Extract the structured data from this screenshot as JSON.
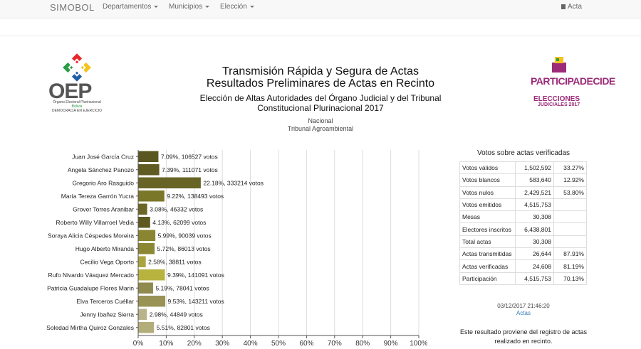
{
  "nav": {
    "brand": "SIMOBOL",
    "items": [
      "Departamentos",
      "Municipios",
      "Elección"
    ],
    "right": "Acta"
  },
  "header": {
    "title_line1": "Transmisión Rápida y Segura de Actas",
    "title_line2": "Resultados Preliminares de Actas en Recinto",
    "subtitle_line1": "Elección de Altas Autoridades del Órgano Judicial y del Tribunal",
    "subtitle_line2": "Constitucional Plurinacional 2017",
    "scope": "Nacional",
    "court": "Tribunal Agroambiental"
  },
  "logos": {
    "oep_word": "OEP",
    "oep_sub1": "Órgano Electoral Plurinacional",
    "oep_sub2": "Bolivia",
    "oep_sub3": "DEMOCRACIA EN EJERCICIO",
    "participa_word": "PARTICIPADECIDE",
    "participa_line1": "ELECCIONES",
    "participa_line2": "JUDICIALES 2017"
  },
  "chart_data": {
    "type": "bar",
    "orientation": "horizontal",
    "categories": [
      "Juan José García Cruz",
      "Angela Sánchez Panozo",
      "Gregorio Aro Rasguido",
      "María Tereza Garrón Yucra",
      "Grover Torres Aranibar",
      "Roberto Willy Villarroel Vedia",
      "Soraya Alicia Céspedes Moreira",
      "Hugo Alberto Miranda",
      "Cecilio Vega Oporto",
      "Rufo Nivardo Vásquez Mercado",
      "Patricia Guadalupe Flores Marin",
      "Elva Terceros Cuéllar",
      "Jenny Ibañez Sierra",
      "Soledad Mirtha Quiroz Gonzales"
    ],
    "values": [
      7.09,
      7.39,
      22.18,
      9.22,
      3.08,
      4.13,
      5.99,
      5.72,
      2.58,
      9.39,
      5.19,
      9.53,
      2.98,
      5.51
    ],
    "labels": [
      "7.09%, 106527 votos",
      "7.39%, 111071 votos",
      "22.18%, 333214 votos",
      "9.22%, 138493 votos",
      "3.08%, 46332 votos",
      "4.13%, 62099 votos",
      "5.99%, 90039 votos",
      "5.72%, 86013 votos",
      "2.58%, 38811 votos",
      "9.39%, 141091 votos",
      "5.19%, 78041 votos",
      "9.53%, 143211 votos",
      "2.98%, 44849 votos",
      "5.51%, 82801 votos"
    ],
    "colors": [
      "#5a5622",
      "#605b22",
      "#676425",
      "#7b7729",
      "#6b6623",
      "#5c581f",
      "#8a8530",
      "#8c8734",
      "#aaa43d",
      "#b8b23f",
      "#8f8a4d",
      "#989254",
      "#b8b38a",
      "#b3ad79"
    ],
    "xlim": [
      0,
      100
    ],
    "xticks": [
      "0%",
      "10%",
      "20%",
      "30%",
      "40%",
      "50%",
      "60%",
      "70%",
      "80%",
      "90%",
      "100%"
    ]
  },
  "stats": {
    "title": "Votos sobre actas verificadas",
    "rows": [
      [
        "Votos válidos",
        "1,502,592",
        "33.27%"
      ],
      [
        "Votos blancos",
        "583,640",
        "12.92%"
      ],
      [
        "Votos nulos",
        "2,429,521",
        "53.80%"
      ],
      [
        "Votos emitidos",
        "4,515,753",
        ""
      ],
      [
        "Mesas",
        "30,308",
        ""
      ],
      [
        "Electores inscritos",
        "6,438,801",
        ""
      ],
      [
        "Total actas",
        "30,308",
        ""
      ],
      [
        "Actas transmitidas",
        "26,644",
        "87.91%"
      ],
      [
        "Actas verificadas",
        "24,608",
        "81.19%"
      ],
      [
        "Participación",
        "4,515,753",
        "70.13%"
      ]
    ],
    "timestamp": "03/12/2017 21:46:20",
    "link": "Actas",
    "note": "Este resultado proviene del registro de actas realizado en recinto."
  }
}
